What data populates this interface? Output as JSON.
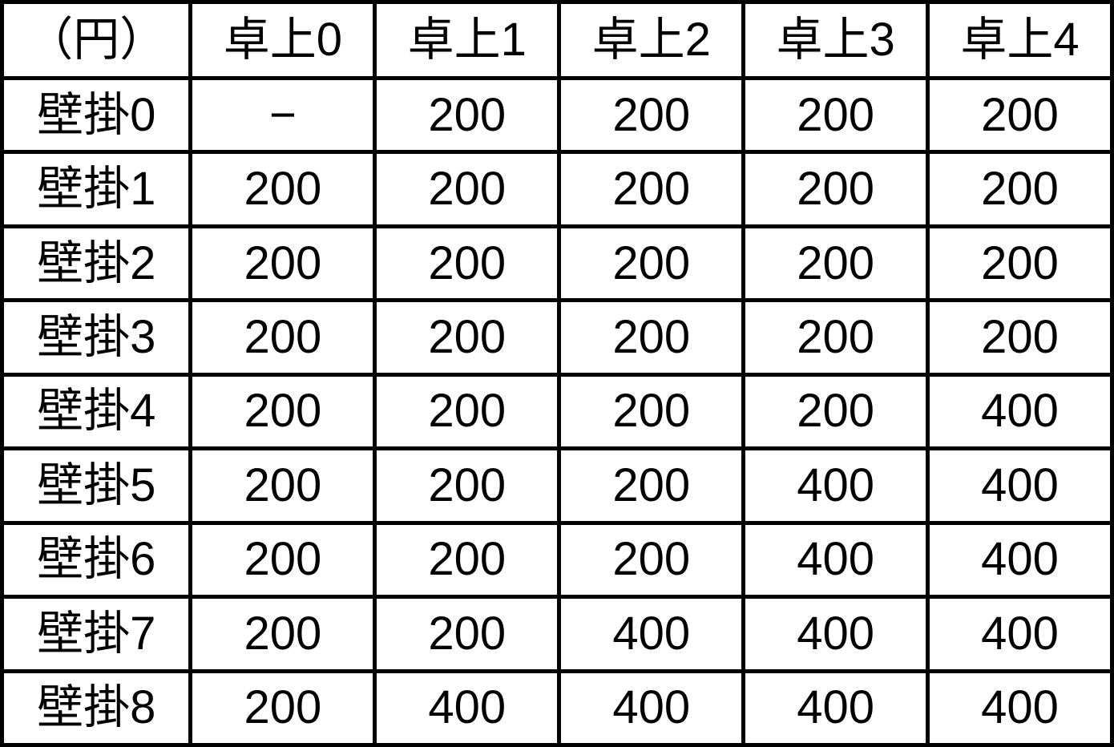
{
  "colors": {
    "background": "#ffffff",
    "border": "#000000",
    "text": "#000000"
  },
  "chart_data": {
    "type": "table",
    "corner_label": "（円）",
    "columns": [
      "卓上0",
      "卓上1",
      "卓上2",
      "卓上3",
      "卓上4"
    ],
    "rows": [
      {
        "label": "壁掛0",
        "values": [
          "−",
          "200",
          "200",
          "200",
          "200"
        ]
      },
      {
        "label": "壁掛1",
        "values": [
          "200",
          "200",
          "200",
          "200",
          "200"
        ]
      },
      {
        "label": "壁掛2",
        "values": [
          "200",
          "200",
          "200",
          "200",
          "200"
        ]
      },
      {
        "label": "壁掛3",
        "values": [
          "200",
          "200",
          "200",
          "200",
          "200"
        ]
      },
      {
        "label": "壁掛4",
        "values": [
          "200",
          "200",
          "200",
          "200",
          "400"
        ]
      },
      {
        "label": "壁掛5",
        "values": [
          "200",
          "200",
          "200",
          "400",
          "400"
        ]
      },
      {
        "label": "壁掛6",
        "values": [
          "200",
          "200",
          "200",
          "400",
          "400"
        ]
      },
      {
        "label": "壁掛7",
        "values": [
          "200",
          "200",
          "400",
          "400",
          "400"
        ]
      },
      {
        "label": "壁掛8",
        "values": [
          "200",
          "400",
          "400",
          "400",
          "400"
        ]
      }
    ],
    "layout": {
      "grid": "on",
      "header_row": true,
      "header_column": true
    }
  }
}
